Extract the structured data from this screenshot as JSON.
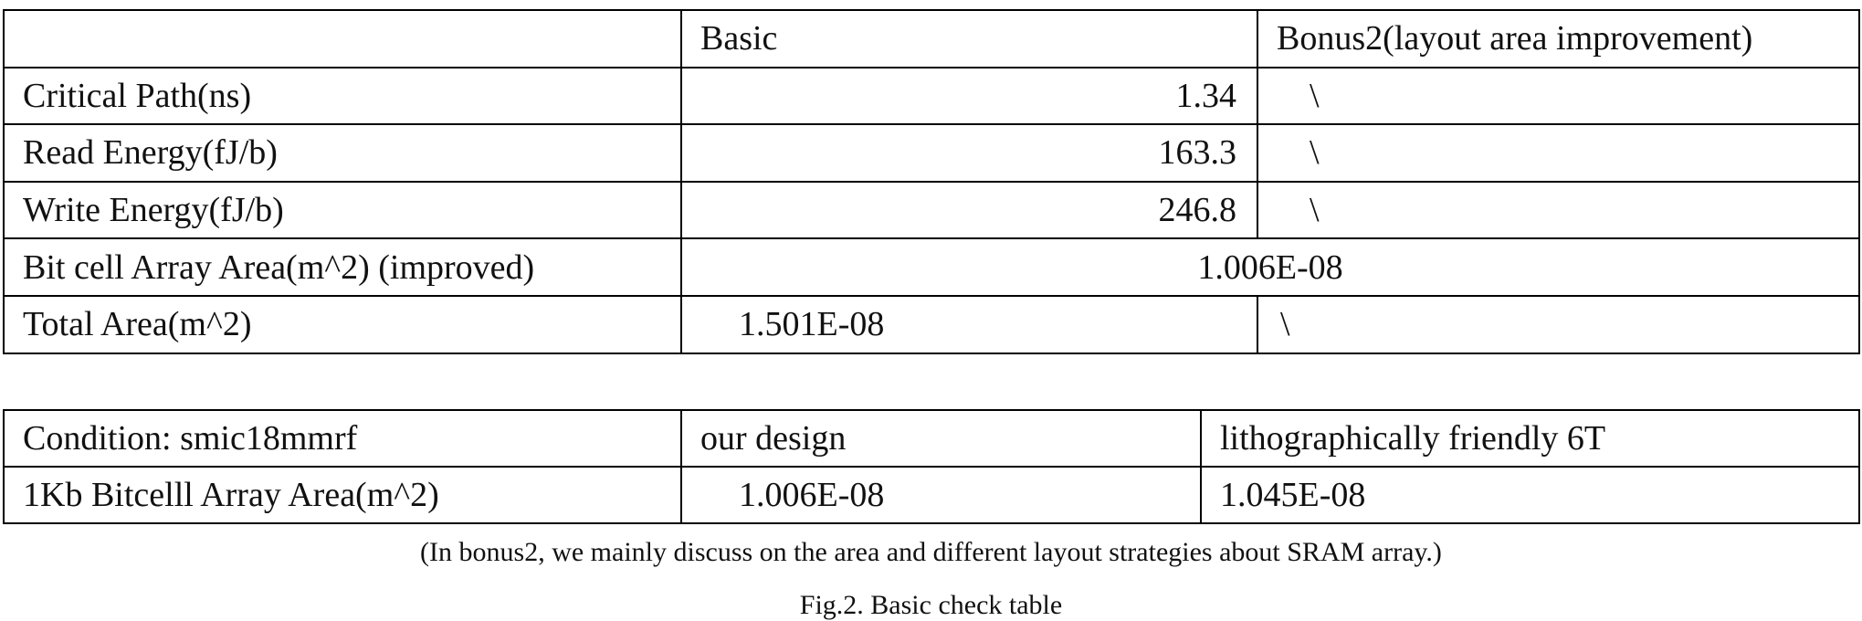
{
  "table1": {
    "header": [
      "",
      "Basic",
      "Bonus2(layout area improvement)"
    ],
    "rows": [
      {
        "label": "Critical Path(ns)",
        "basic": "1.34",
        "bonus2": "\\"
      },
      {
        "label": "Read Energy(fJ/b)",
        "basic": "163.3",
        "bonus2": "\\"
      },
      {
        "label": "Write Energy(fJ/b)",
        "basic": "246.8",
        "bonus2": "\\"
      },
      {
        "label": "Bit cell Array Area(m^2) (improved)",
        "merged": "1.006E-08"
      },
      {
        "label": "Total Area(m^2)",
        "basic": "1.501E-08",
        "bonus2": "\\"
      }
    ]
  },
  "table2": {
    "header": [
      "Condition: smic18mmrf",
      "our design",
      "lithographically friendly 6T"
    ],
    "rows": [
      {
        "label": "1Kb Bitcelll Array Area(m^2)",
        "our_design": "1.006E-08",
        "litho": "1.045E-08"
      }
    ]
  },
  "note": "(In bonus2, we mainly discuss on the area and different layout strategies about SRAM array.)",
  "caption": "Fig.2. Basic check table"
}
